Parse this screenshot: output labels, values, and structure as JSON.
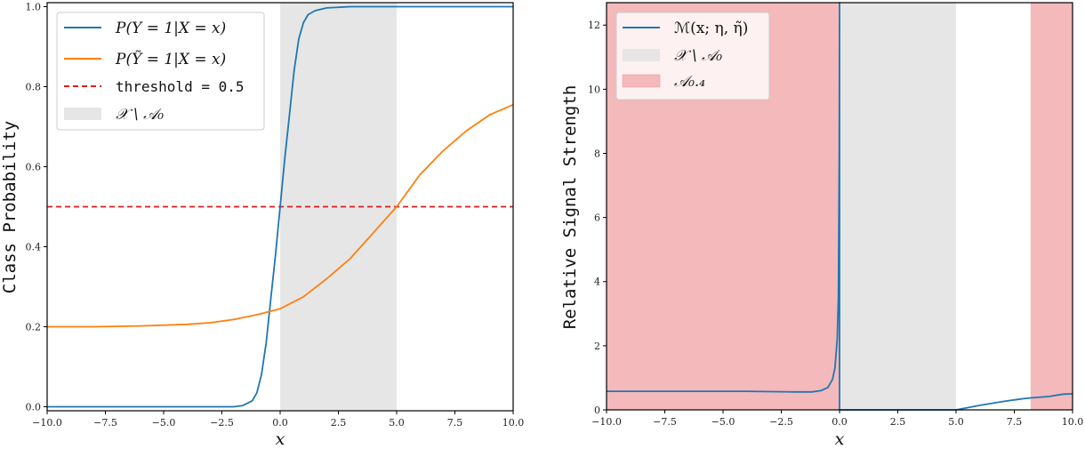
{
  "chart_data": [
    {
      "type": "line",
      "panel": "left",
      "title": "",
      "xlabel": "x",
      "ylabel": "Class Probability",
      "xlim": [
        -10,
        10
      ],
      "ylim": [
        -0.01,
        1.01
      ],
      "xticks": [
        -10.0,
        -7.5,
        -5.0,
        -2.5,
        0.0,
        2.5,
        5.0,
        7.5,
        10.0
      ],
      "xtick_labels": [
        "−10.0",
        "−7.5",
        "−5.0",
        "−2.5",
        "0.0",
        "2.5",
        "5.0",
        "7.5",
        "10.0"
      ],
      "yticks": [
        0.0,
        0.2,
        0.4,
        0.6,
        0.8,
        1.0
      ],
      "ytick_labels": [
        "0.0",
        "0.2",
        "0.4",
        "0.6",
        "0.8",
        "1.0"
      ],
      "grid": false,
      "legend_position": "upper left",
      "shaded_regions": [
        {
          "name": "X \\ A0",
          "x0": 0.0,
          "x1": 5.0,
          "color": "#e6e6e6"
        }
      ],
      "hlines": [
        {
          "name": "threshold = 0.5",
          "y": 0.5,
          "color": "#e41a1c",
          "style": "dashed"
        }
      ],
      "series": [
        {
          "name": "P(Y = 1|X = x)",
          "color": "#1f77b4",
          "x": [
            -10,
            -3,
            -2,
            -1.6,
            -1.2,
            -1.0,
            -0.8,
            -0.6,
            -0.4,
            -0.2,
            0.0,
            0.2,
            0.4,
            0.6,
            0.8,
            1.0,
            1.2,
            1.5,
            2.0,
            3.0,
            10
          ],
          "y": [
            0.0,
            0.0,
            0.0,
            0.003,
            0.015,
            0.035,
            0.08,
            0.16,
            0.27,
            0.38,
            0.5,
            0.62,
            0.73,
            0.84,
            0.92,
            0.96,
            0.98,
            0.99,
            0.997,
            1.0,
            1.0
          ]
        },
        {
          "name": "P(Ỹ = 1|X = x)",
          "color": "#ff7f0e",
          "x": [
            -10,
            -8,
            -6,
            -4,
            -3,
            -2,
            -1,
            0,
            1,
            2,
            3,
            4,
            5,
            6,
            7,
            8,
            9,
            10
          ],
          "y": [
            0.2,
            0.2,
            0.202,
            0.206,
            0.21,
            0.218,
            0.23,
            0.245,
            0.275,
            0.32,
            0.37,
            0.435,
            0.5,
            0.58,
            0.64,
            0.69,
            0.73,
            0.755
          ]
        }
      ],
      "legend": [
        {
          "label": "P(Y = 1|X = x)",
          "kind": "line",
          "color": "#1f77b4"
        },
        {
          "label": "P(Ỹ = 1|X = x)",
          "kind": "line",
          "color": "#ff7f0e"
        },
        {
          "label": "threshold = 0.5",
          "kind": "dashed",
          "color": "#e41a1c"
        },
        {
          "label": "𝒳 \\ 𝒜₀",
          "kind": "patch",
          "color": "#e6e6e6"
        }
      ]
    },
    {
      "type": "line",
      "panel": "right",
      "title": "",
      "xlabel": "x",
      "ylabel": "Relative Signal Strength",
      "xlim": [
        -10,
        10
      ],
      "ylim": [
        0,
        12.7
      ],
      "xticks": [
        -10.0,
        -7.5,
        -5.0,
        -2.5,
        0.0,
        2.5,
        5.0,
        7.5,
        10.0
      ],
      "xtick_labels": [
        "−10.0",
        "−7.5",
        "−5.0",
        "−2.5",
        "0.0",
        "2.5",
        "5.0",
        "7.5",
        "10.0"
      ],
      "yticks": [
        0,
        2,
        4,
        6,
        8,
        10,
        12
      ],
      "ytick_labels": [
        "0",
        "2",
        "4",
        "6",
        "8",
        "10",
        "12"
      ],
      "grid": false,
      "legend_position": "upper left",
      "shaded_regions": [
        {
          "name": "A0.4",
          "x0": -10.0,
          "x1": 0.0,
          "color": "#f4b9bb"
        },
        {
          "name": "X \\ A0",
          "x0": 0.0,
          "x1": 5.0,
          "color": "#e6e6e6"
        },
        {
          "name": "A0.4",
          "x0": 8.2,
          "x1": 10.0,
          "color": "#f4b9bb"
        }
      ],
      "series": [
        {
          "name": "M(x; η, η̃)",
          "color": "#1f77b4",
          "x": [
            -10,
            -8,
            -6,
            -4,
            -2,
            -1.2,
            -0.8,
            -0.5,
            -0.3,
            -0.2,
            -0.1,
            -0.05,
            -0.01,
            0.0,
            0.0,
            0.01,
            5.0,
            6.0,
            7.0,
            8.0,
            9.0,
            9.6,
            10.0
          ],
          "y": [
            0.58,
            0.58,
            0.58,
            0.58,
            0.56,
            0.56,
            0.6,
            0.7,
            0.95,
            1.3,
            2.2,
            3.5,
            8.0,
            12.7,
            0.0,
            0.0,
            0.0,
            0.14,
            0.26,
            0.36,
            0.42,
            0.49,
            0.5
          ]
        }
      ],
      "legend": [
        {
          "label": "ℳ(x; η, η̃)",
          "kind": "line",
          "color": "#1f77b4"
        },
        {
          "label": "𝒳 \\ 𝒜₀",
          "kind": "patch",
          "color": "#e6e6e6"
        },
        {
          "label": "𝒜₀.₄",
          "kind": "patch",
          "color": "#f4b9bb"
        }
      ]
    }
  ]
}
